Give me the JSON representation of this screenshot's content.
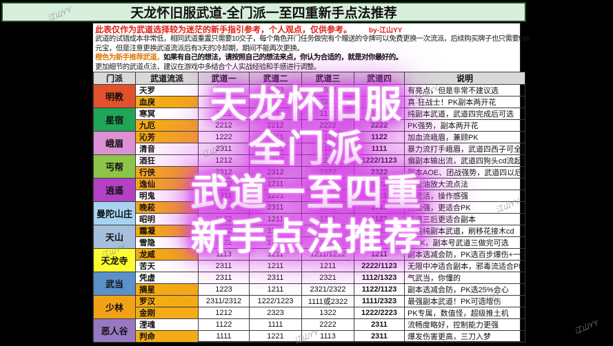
{
  "banner": {
    "title": "天龙怀旧服武道-全门派一至四重新手点法推荐"
  },
  "notes": {
    "line1": "此表仅作为武道选择较为迷茫的新手指引参考，个人观点，仅供参考。",
    "byline": "by-江山YY",
    "line2a": "武道的试错成本非常低，相同武道重置只需要10交子，每个角色开门任务做完有个赠送的令牌可以免费更换一次流派，后续购买牌子也只需要588",
    "line2b": "元宝，但是注意更换武道流派后有3天的冷却期，期间不能再次更换。",
    "line3_orange": "橙色为新手推荐武道，",
    "line3_rest": "如果有自己的想法，请按照自己的想法来点，你认为合适的，就是对你最好的。",
    "line4": "更加细节的武道点法，建议在游戏中多结合个人实战经验和手感进行调整。"
  },
  "table": {
    "headers": [
      "门派",
      "武道流派",
      "武道一",
      "武道二",
      "武道三",
      "武道四",
      "说明"
    ],
    "highlight_color": "#f4ab16",
    "groups": [
      {
        "sect": "明教",
        "color": "#e2512b",
        "rows": [
          {
            "style": "天罗",
            "hl": false,
            "w1": "2323",
            "w2": "2223",
            "w3": "2322",
            "w4": "2322",
            "note": "有亮点，但是非常不建议选"
          },
          {
            "style": "血戾",
            "hl": true,
            "w1": "2311",
            "w2": "1222",
            "w3": "2311",
            "w4": "2222",
            "note": "真·狂战士！PK副本两开花"
          }
        ]
      },
      {
        "sect": "星宿",
        "color": "#1fa657",
        "rows": [
          {
            "style": "寒冥",
            "hl": false,
            "w1": "1122",
            "w2": "1122",
            "w3": "1122",
            "w4": "1122",
            "note": "纯副本武道，武道四完成后可选"
          },
          {
            "style": "九厄",
            "hl": true,
            "w1": "2212",
            "w2": "2212",
            "w3": "2222",
            "w4": "2222",
            "note": "PK强势，副本两开花"
          }
        ]
      },
      {
        "sect": "峨眉",
        "color": "#dd90d4",
        "rows": [
          {
            "style": "沁芳",
            "hl": true,
            "w1": "1222",
            "w2": "2311",
            "w3": "1111",
            "w4": "1122",
            "note": "加血流峨眉，兼顾PK"
          },
          {
            "style": "清音",
            "hl": false,
            "w1": "2311",
            "w2": "2311",
            "w3": "1111",
            "w4": "1111",
            "note": "暴力流打手峨眉，武道四西子可全队回血"
          }
        ]
      },
      {
        "sect": "丐帮",
        "color": "#8cc548",
        "rows": [
          {
            "style": "酒狂",
            "hl": false,
            "w1": "1212",
            "w2": "1212",
            "w3": "1222",
            "w4": "1222/1123",
            "note": "偏副本输出流，武道四狗头cd流起势"
          },
          {
            "style": "行侠",
            "hl": true,
            "w1": "2312",
            "w2": "2312",
            "w3": "2322",
            "w4": "2322",
            "note": "副本AOE、团战强势，武道四以后选千里"
          }
        ]
      },
      {
        "sect": "逍遥",
        "color": "#b441c4",
        "rows": [
          {
            "style": "逸仙",
            "hl": true,
            "w1": "1222",
            "w2": "1211",
            "w3": "1211",
            "w4": "1122",
            "note": "万金油放大流点法"
          },
          {
            "style": "明鬼",
            "hl": false,
            "w1": "2311",
            "w2": "1221",
            "w3": "1221",
            "w4": "1111",
            "note": "更灵活，操作感强"
          }
        ]
      },
      {
        "sect": "曼陀山庄",
        "color": "#a7d3f1",
        "rows": [
          {
            "style": "晚菘",
            "hl": true,
            "w1": "1122",
            "w2": "2311",
            "w3": "2311",
            "w4": "2311",
            "note": "回血强，更适合PK"
          },
          {
            "style": "昭明",
            "hl": false,
            "w1": "1122",
            "w2": "1211",
            "w3": "1211",
            "w4": "1122",
            "note": "武道三后更适合副本"
          }
        ]
      },
      {
        "sect": "天山",
        "color": "#a6bfdd",
        "rows": [
          {
            "style": "霜凝",
            "hl": true,
            "w1": "1122",
            "w2": "1122",
            "w3": "1122",
            "w4": "1122",
            "note": "纯纯纯副本武道，刷移花接木cd"
          },
          {
            "style": "雪隐",
            "hl": false,
            "w1": "1122",
            "w2": "1223",
            "w3": "1222",
            "w4": "2311",
            "note": "偏PK，副本号武道三做完可选"
          }
        ]
      },
      {
        "sect": "天龙寺",
        "color": "#fcfc30",
        "rows": [
          {
            "style": "龙威",
            "hl": true,
            "w1": "1113",
            "w2": "1211",
            "w3": "1211/1212",
            "w4": "1211",
            "note": "副本选减会防，PK选百步爆伤+一阳指"
          },
          {
            "style": "苦天",
            "hl": false,
            "w1": "2311",
            "w2": "1211",
            "w3": "1211",
            "w4": "2222/1123",
            "note": "无限中冲适合副本，邪毒流适合PK"
          }
        ]
      },
      {
        "sect": "武当",
        "color": "#5b91c9",
        "rows": [
          {
            "style": "凭虚",
            "hl": false,
            "w1": "2311",
            "w2": "2311",
            "w3": "2321",
            "w4": "1112/1323",
            "note": "气武当，你懂的"
          },
          {
            "style": "摘星",
            "hl": true,
            "w1": "1223",
            "w2": "1211",
            "w3": "2321/2322",
            "w4": "1122/1123",
            "note": "副本选减会防，PK选25%会心"
          }
        ]
      },
      {
        "sect": "少林",
        "color": "#f3a218",
        "rows": [
          {
            "style": "罗汉",
            "hl": true,
            "w1": "2311/2312",
            "w2": "1222/1223",
            "w3": "1111或2322",
            "w4": "1111/2323",
            "note": "最强副本武道！PK可选增伤"
          },
          {
            "style": "金刚",
            "hl": true,
            "w1": "1212",
            "w2": "2323",
            "w3": "1322",
            "w4": "1222/2223",
            "note": "PK专属，数值怪，超级推土机"
          }
        ]
      },
      {
        "sect": "恶人谷",
        "color": "#9779c1",
        "rows": [
          {
            "style": "湮魂",
            "hl": false,
            "w1": "1122",
            "w2": "1111",
            "w3": "2222",
            "w4": "2311",
            "note": "流畅度略好，控制能力更强"
          },
          {
            "style": "判命",
            "hl": true,
            "w1": "1111",
            "w2": "1221",
            "w3": "1113",
            "w4": "2311",
            "note": "爆发伤害更高，三刀入梦"
          }
        ]
      }
    ]
  },
  "watermark": {
    "big_lines": [
      "天龙怀旧服",
      "全门派",
      "武道一至四重",
      "新手点法推荐"
    ],
    "small_text": "江山YY"
  }
}
